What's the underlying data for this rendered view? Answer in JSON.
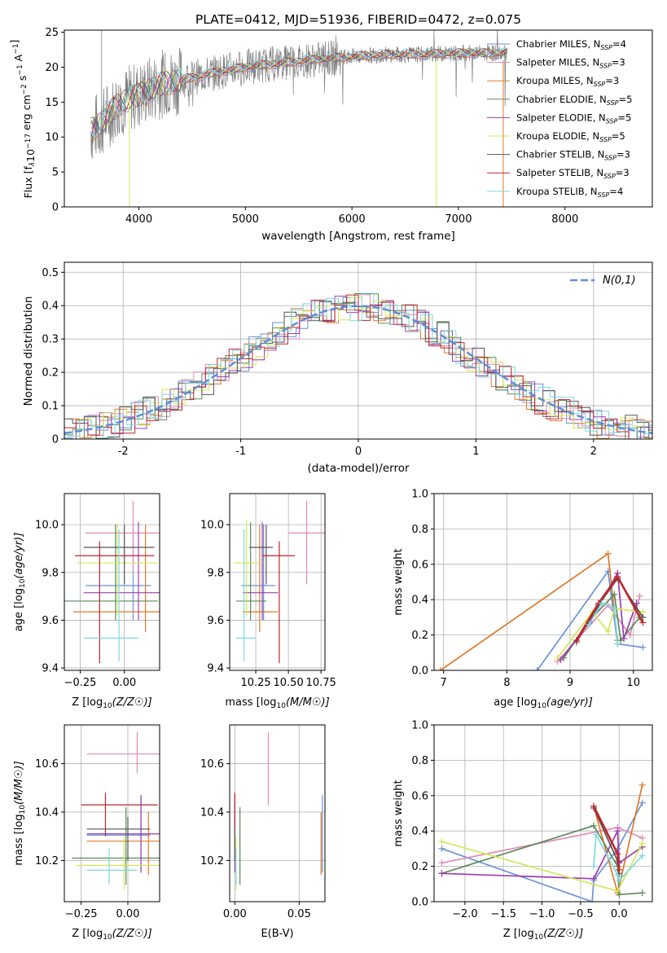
{
  "figure_title": "PLATE=0412, MJD=51936, FIBERID=0472, z=0.075",
  "models": [
    {
      "label": "Chabrier MILES, N",
      "nssp": "4",
      "color": "#6a93d8"
    },
    {
      "label": "Salpeter MILES, N",
      "nssp": "3",
      "color": "#e08ab6"
    },
    {
      "label": "Kroupa MILES, N",
      "nssp": "3",
      "color": "#e07a2a"
    },
    {
      "label": "Chabrier ELODIE, N",
      "nssp": "5",
      "color": "#5a8a5a"
    },
    {
      "label": "Salpeter ELODIE, N",
      "nssp": "5",
      "color": "#9b3db0"
    },
    {
      "label": "Kroupa ELODIE, N",
      "nssp": "5",
      "color": "#d4e65a"
    },
    {
      "label": "Chabrier STELIB, N",
      "nssp": "3",
      "color": "#555555"
    },
    {
      "label": "Salpeter STELIB, N",
      "nssp": "3",
      "color": "#c0262b"
    },
    {
      "label": "Kroupa STELIB, N",
      "nssp": "4",
      "color": "#7fd8e0"
    }
  ],
  "ssp_subscript": "SSP",
  "chart_data": [
    {
      "id": "spectrum",
      "type": "line",
      "xlabel": "wavelength [Angstrom, rest frame]",
      "ylabel": "Flux [f",
      "ylabel_mid": "10",
      "ylabel_exp1": "−17",
      "ylabel_unit": " erg cm",
      "ylabel_exp2": "−2",
      "ylabel_s": " s",
      "ylabel_exp3": "−1",
      "ylabel_end": " A",
      "ylabel_exp4": "−1",
      "ylabel_close": "]",
      "xlim": [
        3300,
        8820
      ],
      "ylim": [
        0,
        25.3
      ],
      "xticks": [
        4000,
        5000,
        6000,
        7000,
        8000
      ],
      "yticks": [
        0,
        5,
        10,
        15,
        20,
        25
      ],
      "data_color": "#808080",
      "continuum": [
        [
          3550,
          11
        ],
        [
          3650,
          12
        ],
        [
          3700,
          13
        ],
        [
          3800,
          14.5
        ],
        [
          3900,
          15.5
        ],
        [
          4000,
          16
        ],
        [
          4200,
          17.5
        ],
        [
          4500,
          18.5
        ],
        [
          4800,
          19.5
        ],
        [
          5000,
          20
        ],
        [
          5300,
          20.5
        ],
        [
          5600,
          21
        ],
        [
          6000,
          21.5
        ],
        [
          6300,
          21.8
        ],
        [
          6600,
          21.8
        ],
        [
          7000,
          22
        ],
        [
          7300,
          22
        ],
        [
          7500,
          22
        ]
      ]
    },
    {
      "id": "histogram",
      "type": "line",
      "xlabel": "(data-model)/error",
      "ylabel": "Normed distribution",
      "xlim": [
        -2.5,
        2.5
      ],
      "ylim": [
        0,
        0.53
      ],
      "xticks": [
        -2,
        -1,
        0,
        1,
        2
      ],
      "yticks": [
        0.0,
        0.1,
        0.2,
        0.3,
        0.4,
        0.5
      ],
      "legend": "N(0,1)",
      "gauss_color": "#5b8fd8"
    },
    {
      "id": "age_vs_Z",
      "type": "scatter",
      "xlabel": "Z [log",
      "ylabel": "age  [log",
      "xlim": [
        -0.34,
        0.2
      ],
      "ylim": [
        9.39,
        10.13
      ],
      "xticks": [
        -0.25,
        0.0
      ],
      "xticklabels": [
        "−0.25",
        "0.00"
      ],
      "yticks": [
        9.4,
        9.6,
        9.8,
        10.0
      ],
      "yticklabels": [
        "9.4",
        "9.6",
        "9.8",
        "10.0"
      ],
      "errorbars": [
        {
          "m": 0,
          "x": 0.05,
          "y": 9.745,
          "xlo": -0.22,
          "xhi": 0.15,
          "ylo": 9.6,
          "yhi": 10.0
        },
        {
          "m": 1,
          "x": 0.05,
          "y": 9.965,
          "xlo": -0.22,
          "xhi": 0.2,
          "ylo": 9.8,
          "yhi": 10.1
        },
        {
          "m": 2,
          "x": 0.12,
          "y": 9.635,
          "xlo": -0.29,
          "xhi": 0.2,
          "ylo": 9.55,
          "yhi": 10.0
        },
        {
          "m": 3,
          "x": -0.05,
          "y": 9.68,
          "xlo": -0.34,
          "xhi": 0.19,
          "ylo": 9.6,
          "yhi": 10.0
        },
        {
          "m": 4,
          "x": 0.08,
          "y": 9.715,
          "xlo": -0.23,
          "xhi": 0.2,
          "ylo": 9.6,
          "yhi": 10.01
        },
        {
          "m": 5,
          "x": -0.04,
          "y": 9.84,
          "xlo": -0.27,
          "xhi": 0.19,
          "ylo": 9.62,
          "yhi": 10.0
        },
        {
          "m": 6,
          "x": 0.0,
          "y": 9.905,
          "xlo": -0.23,
          "xhi": 0.17,
          "ylo": 9.75,
          "yhi": 10.0
        },
        {
          "m": 7,
          "x": -0.14,
          "y": 9.87,
          "xlo": -0.28,
          "xhi": 0.17,
          "ylo": 9.42,
          "yhi": 9.93
        },
        {
          "m": 8,
          "x": -0.03,
          "y": 9.525,
          "xlo": -0.23,
          "xhi": 0.08,
          "ylo": 9.43,
          "yhi": 9.98
        }
      ]
    },
    {
      "id": "age_vs_mass",
      "type": "scatter",
      "xlabel": "mass [log",
      "xlim": [
        10.05,
        10.78
      ],
      "ylim": [
        9.39,
        10.13
      ],
      "xticks": [
        10.25,
        10.5,
        10.75
      ],
      "xticklabels": [
        "10.25",
        "10.50",
        "10.75"
      ],
      "yticks": [
        9.4,
        9.6,
        9.8,
        10.0
      ],
      "yticklabels": [
        "9.4",
        "9.6",
        "9.8",
        "10.0"
      ],
      "errorbars": [
        {
          "m": 0,
          "x": 10.31,
          "y": 9.745,
          "xlo": 10.14,
          "xhi": 10.4,
          "ylo": 9.6,
          "yhi": 10.0
        },
        {
          "m": 1,
          "x": 10.64,
          "y": 9.965,
          "xlo": 10.5,
          "xhi": 10.78,
          "ylo": 9.75,
          "yhi": 10.1
        },
        {
          "m": 2,
          "x": 10.28,
          "y": 9.635,
          "xlo": 10.15,
          "xhi": 10.42,
          "ylo": 9.55,
          "yhi": 10.0
        },
        {
          "m": 3,
          "x": 10.21,
          "y": 9.68,
          "xlo": 10.1,
          "xhi": 10.33,
          "ylo": 9.6,
          "yhi": 10.01
        },
        {
          "m": 4,
          "x": 10.3,
          "y": 9.715,
          "xlo": 10.15,
          "xhi": 10.42,
          "ylo": 9.6,
          "yhi": 10.01
        },
        {
          "m": 5,
          "x": 10.18,
          "y": 9.84,
          "xlo": 10.08,
          "xhi": 10.3,
          "ylo": 9.62,
          "yhi": 10.02
        },
        {
          "m": 6,
          "x": 10.33,
          "y": 9.905,
          "xlo": 10.2,
          "xhi": 10.38,
          "ylo": 9.75,
          "yhi": 10.0
        },
        {
          "m": 7,
          "x": 10.43,
          "y": 9.87,
          "xlo": 10.3,
          "xhi": 10.55,
          "ylo": 9.42,
          "yhi": 9.93
        },
        {
          "m": 8,
          "x": 10.16,
          "y": 9.525,
          "xlo": 10.1,
          "xhi": 10.25,
          "ylo": 9.43,
          "yhi": 9.98
        }
      ]
    },
    {
      "id": "massweight_vs_age",
      "type": "line",
      "xlabel": "age  [log",
      "ylabel": "mass weight",
      "xlim": [
        6.85,
        10.3
      ],
      "ylim": [
        0,
        1
      ],
      "xticks": [
        7,
        8,
        9,
        10
      ],
      "xticklabels": [
        "7",
        "8",
        "9",
        "10"
      ],
      "yticks": [
        0.0,
        0.2,
        0.4,
        0.6,
        0.8,
        1.0
      ],
      "yticklabels": [
        "0.0",
        "0.2",
        "0.4",
        "0.6",
        "0.8",
        "1.0"
      ],
      "series": [
        {
          "m": 0,
          "pts": [
            [
              8.48,
              0.0
            ],
            [
              9.6,
              0.56
            ],
            [
              9.75,
              0.15
            ],
            [
              10.15,
              0.13
            ]
          ]
        },
        {
          "m": 1,
          "pts": [
            [
              8.8,
              0.05
            ],
            [
              9.6,
              0.37
            ],
            [
              9.95,
              0.2
            ],
            [
              10.1,
              0.42
            ]
          ]
        },
        {
          "m": 2,
          "pts": [
            [
              6.95,
              0.0
            ],
            [
              9.6,
              0.66
            ],
            [
              9.75,
              0.17
            ]
          ]
        },
        {
          "m": 3,
          "pts": [
            [
              8.9,
              0.07
            ],
            [
              9.3,
              0.28
            ],
            [
              9.7,
              0.43
            ],
            [
              9.8,
              0.17
            ],
            [
              10.1,
              0.3
            ]
          ]
        },
        {
          "m": 4,
          "pts": [
            [
              8.85,
              0.06
            ],
            [
              9.3,
              0.27
            ],
            [
              9.75,
              0.55
            ],
            [
              9.85,
              0.18
            ],
            [
              10.05,
              0.38
            ]
          ]
        },
        {
          "m": 5,
          "pts": [
            [
              8.8,
              0.07
            ],
            [
              9.35,
              0.33
            ],
            [
              9.6,
              0.22
            ],
            [
              9.7,
              0.35
            ],
            [
              10.15,
              0.33
            ]
          ]
        },
        {
          "m": 6,
          "pts": [
            [
              9.1,
              0.16
            ],
            [
              9.45,
              0.37
            ],
            [
              9.75,
              0.52
            ],
            [
              10.15,
              0.3
            ]
          ]
        },
        {
          "m": 7,
          "pts": [
            [
              9.1,
              0.17
            ],
            [
              9.45,
              0.38
            ],
            [
              9.75,
              0.53
            ],
            [
              10.15,
              0.27
            ]
          ]
        },
        {
          "m": 8,
          "pts": [
            [
              9.3,
              0.26
            ],
            [
              9.5,
              0.38
            ],
            [
              9.7,
              0.35
            ],
            [
              9.75,
              0.15
            ]
          ]
        }
      ]
    },
    {
      "id": "mass_vs_Z",
      "type": "scatter",
      "xlabel": "Z [log",
      "ylabel": "mass [log",
      "xlim": [
        -0.34,
        0.17
      ],
      "ylim": [
        10.03,
        10.76
      ],
      "xticks": [
        -0.25,
        0.0
      ],
      "xticklabels": [
        "−0.25",
        "0.00"
      ],
      "yticks": [
        10.2,
        10.4,
        10.6
      ],
      "yticklabels": [
        "10.2",
        "10.4",
        "10.6"
      ],
      "errorbars": [
        {
          "m": 0,
          "x": 0.07,
          "y": 10.305,
          "xlo": -0.22,
          "xhi": 0.12,
          "ylo": 10.15,
          "yhi": 10.47
        },
        {
          "m": 1,
          "x": 0.05,
          "y": 10.64,
          "xlo": -0.22,
          "xhi": 0.19,
          "ylo": 10.56,
          "yhi": 10.73
        },
        {
          "m": 2,
          "x": 0.11,
          "y": 10.28,
          "xlo": -0.22,
          "xhi": 0.19,
          "ylo": 10.14,
          "yhi": 10.4
        },
        {
          "m": 3,
          "x": -0.01,
          "y": 10.21,
          "xlo": -0.3,
          "xhi": 0.17,
          "ylo": 10.1,
          "yhi": 10.42
        },
        {
          "m": 4,
          "x": 0.07,
          "y": 10.31,
          "xlo": -0.22,
          "xhi": 0.19,
          "ylo": 10.15,
          "yhi": 10.47
        },
        {
          "m": 5,
          "x": -0.02,
          "y": 10.18,
          "xlo": -0.28,
          "xhi": 0.17,
          "ylo": 10.08,
          "yhi": 10.3
        },
        {
          "m": 6,
          "x": 0.0,
          "y": 10.33,
          "xlo": -0.22,
          "xhi": 0.12,
          "ylo": 10.2,
          "yhi": 10.38
        },
        {
          "m": 7,
          "x": -0.12,
          "y": 10.43,
          "xlo": -0.25,
          "xhi": 0.16,
          "ylo": 10.3,
          "yhi": 10.48
        },
        {
          "m": 8,
          "x": -0.1,
          "y": 10.16,
          "xlo": -0.22,
          "xhi": 0.05,
          "ylo": 10.1,
          "yhi": 10.25
        }
      ]
    },
    {
      "id": "mass_vs_ebv",
      "type": "scatter",
      "xlabel": "E(B-V)",
      "xlim": [
        -0.004,
        0.07
      ],
      "ylim": [
        10.03,
        10.76
      ],
      "xticks": [
        0.0,
        0.05
      ],
      "xticklabels": [
        "0.00",
        "0.05"
      ],
      "yticks": [
        10.2,
        10.4,
        10.6
      ],
      "yticklabels": [
        "10.2",
        "10.4",
        "10.6"
      ],
      "errorbars": [
        {
          "m": 0,
          "x": 0.068,
          "y": 10.305,
          "xlo": 0.068,
          "xhi": 0.068,
          "ylo": 10.15,
          "yhi": 10.47
        },
        {
          "m": 1,
          "x": 0.026,
          "y": 10.64,
          "xlo": 0.026,
          "xhi": 0.026,
          "ylo": 10.43,
          "yhi": 10.73
        },
        {
          "m": 2,
          "x": 0.067,
          "y": 10.28,
          "xlo": 0.067,
          "xhi": 0.067,
          "ylo": 10.14,
          "yhi": 10.4
        },
        {
          "m": 3,
          "x": 0.004,
          "y": 10.21,
          "xlo": 0.004,
          "xhi": 0.004,
          "ylo": 10.1,
          "yhi": 10.42
        },
        {
          "m": 4,
          "x": 0.0,
          "y": 10.31,
          "xlo": 0.0,
          "xhi": 0.0,
          "ylo": 10.15,
          "yhi": 10.47
        },
        {
          "m": 5,
          "x": 0.001,
          "y": 10.18,
          "xlo": 0.001,
          "xhi": 0.001,
          "ylo": 10.08,
          "yhi": 10.3
        },
        {
          "m": 6,
          "x": 0.0,
          "y": 10.33,
          "xlo": 0.0,
          "xhi": 0.0,
          "ylo": 10.2,
          "yhi": 10.38
        },
        {
          "m": 7,
          "x": 0.0,
          "y": 10.43,
          "xlo": 0.0,
          "xhi": 0.0,
          "ylo": 10.33,
          "yhi": 10.48
        },
        {
          "m": 8,
          "x": 0.001,
          "y": 10.16,
          "xlo": 0.001,
          "xhi": 0.001,
          "ylo": 10.1,
          "yhi": 10.25
        }
      ]
    },
    {
      "id": "massweight_vs_Z",
      "type": "line",
      "xlabel": "Z [log",
      "ylabel": "mass weight",
      "xlim": [
        -2.4,
        0.43
      ],
      "ylim": [
        0,
        1
      ],
      "xticks": [
        -2.0,
        -1.5,
        -1.0,
        -0.5,
        0.0
      ],
      "xticklabels": [
        "−2.0",
        "−1.5",
        "−1.0",
        "−0.5",
        "0.0"
      ],
      "yticks": [
        0.0,
        0.2,
        0.4,
        0.6,
        0.8,
        1.0
      ],
      "yticklabels": [
        "0.0",
        "0.2",
        "0.4",
        "0.6",
        "0.8",
        "1.0"
      ],
      "series": [
        {
          "m": 0,
          "pts": [
            [
              -2.3,
              0.3
            ],
            [
              -0.35,
              0.0
            ],
            [
              -0.33,
              0.12
            ],
            [
              -0.02,
              0.3
            ],
            [
              0.3,
              0.56
            ]
          ]
        },
        {
          "m": 1,
          "pts": [
            [
              -2.3,
              0.22
            ],
            [
              -0.02,
              0.42
            ],
            [
              0.3,
              0.36
            ]
          ]
        },
        {
          "m": 2,
          "pts": [
            [
              -0.33,
              0.54
            ],
            [
              -0.02,
              0.05
            ],
            [
              0.3,
              0.66
            ]
          ]
        },
        {
          "m": 3,
          "pts": [
            [
              -2.3,
              0.16
            ],
            [
              -0.33,
              0.43
            ],
            [
              -0.02,
              0.2
            ],
            [
              0.0,
              0.04
            ],
            [
              0.3,
              0.05
            ]
          ]
        },
        {
          "m": 4,
          "pts": [
            [
              -2.3,
              0.16
            ],
            [
              -0.33,
              0.13
            ],
            [
              -0.02,
              0.4
            ],
            [
              0.0,
              0.22
            ],
            [
              0.3,
              0.31
            ]
          ]
        },
        {
          "m": 5,
          "pts": [
            [
              -2.3,
              0.34
            ],
            [
              -0.02,
              0.06
            ],
            [
              0.3,
              0.33
            ]
          ]
        },
        {
          "m": 6,
          "pts": [
            [
              -0.33,
              0.53
            ],
            [
              -0.02,
              0.23
            ],
            [
              0.0,
              0.16
            ]
          ]
        },
        {
          "m": 7,
          "pts": [
            [
              -0.33,
              0.54
            ],
            [
              -0.02,
              0.27
            ],
            [
              0.0,
              0.18
            ]
          ]
        },
        {
          "m": 8,
          "pts": [
            [
              -0.33,
              0.2
            ],
            [
              -0.3,
              0.38
            ],
            [
              -0.02,
              0.15
            ],
            [
              0.0,
              0.12
            ],
            [
              0.3,
              0.26
            ]
          ]
        }
      ]
    }
  ]
}
